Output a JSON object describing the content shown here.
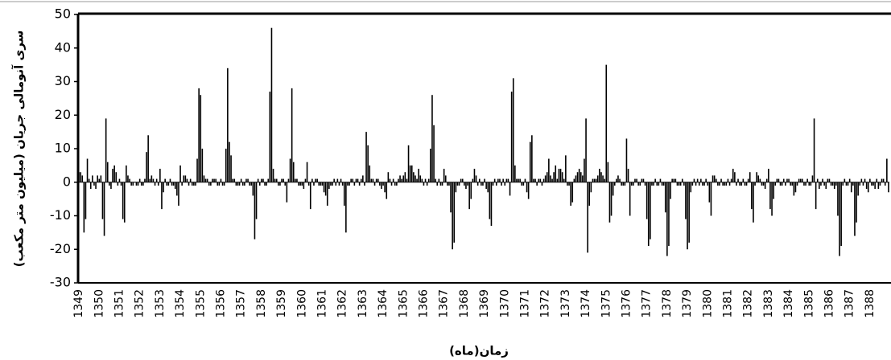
{
  "chart_data": {
    "type": "bar",
    "y_label": "سری آنومالی جریان (میلیون متر مکعب)",
    "x_label": "زمان(ماه)",
    "color": "#000000",
    "ylim": [
      -30,
      50
    ],
    "yticks": [
      -30,
      -20,
      -10,
      0,
      10,
      20,
      30,
      40,
      50
    ],
    "grid": false,
    "categories": [
      "1349",
      null,
      null,
      null,
      null,
      null,
      null,
      null,
      null,
      null,
      null,
      null,
      "1350",
      null,
      null,
      null,
      null,
      null,
      null,
      null,
      null,
      null,
      null,
      null,
      "1351",
      null,
      null,
      null,
      null,
      null,
      null,
      null,
      null,
      null,
      null,
      null,
      "1352",
      null,
      null,
      null,
      null,
      null,
      null,
      null,
      null,
      null,
      null,
      null,
      "1353",
      null,
      null,
      null,
      null,
      null,
      null,
      null,
      null,
      null,
      null,
      null,
      "1354",
      null,
      null,
      null,
      null,
      null,
      null,
      null,
      null,
      null,
      null,
      null,
      "1355",
      null,
      null,
      null,
      null,
      null,
      null,
      null,
      null,
      null,
      null,
      null,
      "1356",
      null,
      null,
      null,
      null,
      null,
      null,
      null,
      null,
      null,
      null,
      null,
      "1357",
      null,
      null,
      null,
      null,
      null,
      null,
      null,
      null,
      null,
      null,
      null,
      "1358",
      null,
      null,
      null,
      null,
      null,
      null,
      null,
      null,
      null,
      null,
      null,
      "1359",
      null,
      null,
      null,
      null,
      null,
      null,
      null,
      null,
      null,
      null,
      null,
      "1360",
      null,
      null,
      null,
      null,
      null,
      null,
      null,
      null,
      null,
      null,
      null,
      "1361",
      null,
      null,
      null,
      null,
      null,
      null,
      null,
      null,
      null,
      null,
      null,
      "1362",
      null,
      null,
      null,
      null,
      null,
      null,
      null,
      null,
      null,
      null,
      null,
      "1363",
      null,
      null,
      null,
      null,
      null,
      null,
      null,
      null,
      null,
      null,
      null,
      "1364",
      null,
      null,
      null,
      null,
      null,
      null,
      null,
      null,
      null,
      null,
      null,
      "1365",
      null,
      null,
      null,
      null,
      null,
      null,
      null,
      null,
      null,
      null,
      null,
      "1366",
      null,
      null,
      null,
      null,
      null,
      null,
      null,
      null,
      null,
      null,
      null,
      "1367",
      null,
      null,
      null,
      null,
      null,
      null,
      null,
      null,
      null,
      null,
      null,
      "1368",
      null,
      null,
      null,
      null,
      null,
      null,
      null,
      null,
      null,
      null,
      null,
      "1369",
      null,
      null,
      null,
      null,
      null,
      null,
      null,
      null,
      null,
      null,
      null,
      "1370",
      null,
      null,
      null,
      null,
      null,
      null,
      null,
      null,
      null,
      null,
      null,
      "1371",
      null,
      null,
      null,
      null,
      null,
      null,
      null,
      null,
      null,
      null,
      null,
      "1372",
      null,
      null,
      null,
      null,
      null,
      null,
      null,
      null,
      null,
      null,
      null,
      "1373",
      null,
      null,
      null,
      null,
      null,
      null,
      null,
      null,
      null,
      null,
      null,
      "1374",
      null,
      null,
      null,
      null,
      null,
      null,
      null,
      null,
      null,
      null,
      null,
      "1375",
      null,
      null,
      null,
      null,
      null,
      null,
      null,
      null,
      null,
      null,
      null,
      "1376",
      null,
      null,
      null,
      null,
      null,
      null,
      null,
      null,
      null,
      null,
      null,
      "1377",
      null,
      null,
      null,
      null,
      null,
      null,
      null,
      null,
      null,
      null,
      null,
      "1378",
      null,
      null,
      null,
      null,
      null,
      null,
      null,
      null,
      null,
      null,
      null,
      "1379",
      null,
      null,
      null,
      null,
      null,
      null,
      null,
      null,
      null,
      null,
      null,
      "1380",
      null,
      null,
      null,
      null,
      null,
      null,
      null,
      null,
      null,
      null,
      null,
      "1381",
      null,
      null,
      null,
      null,
      null,
      null,
      null,
      null,
      null,
      null,
      null,
      "1382",
      null,
      null,
      null,
      null,
      null,
      null,
      null,
      null,
      null,
      null,
      null,
      "1383",
      null,
      null,
      null,
      null,
      null,
      null,
      null,
      null,
      null,
      null,
      null,
      "1384",
      null,
      null,
      null,
      null,
      null,
      null,
      null,
      null,
      null,
      null,
      null,
      "1385",
      null,
      null,
      null,
      null,
      null,
      null,
      null,
      null,
      null,
      null,
      null,
      "1386",
      null,
      null,
      null,
      null,
      null,
      null,
      null,
      null,
      null,
      null,
      null,
      "1387",
      null,
      null,
      null,
      null,
      null,
      null,
      null,
      null,
      null,
      null,
      null,
      "1388",
      null,
      null,
      null,
      null,
      null,
      null,
      null,
      null,
      null,
      null,
      null
    ],
    "values": [
      3,
      3,
      2,
      -15,
      -11,
      7,
      1,
      -2,
      2,
      -1,
      -2,
      2,
      1,
      2,
      -11,
      -16,
      19,
      6,
      -1,
      -2,
      4,
      5,
      3,
      -1,
      1,
      -1,
      -11,
      -12,
      5,
      2,
      1,
      -1,
      -1,
      0,
      -1,
      -1,
      1,
      -1,
      -1,
      1,
      9,
      14,
      1,
      2,
      1,
      -1,
      1,
      -1,
      4,
      -8,
      -3,
      1,
      -1,
      -1,
      1,
      -1,
      -1,
      -2,
      -4,
      -7,
      5,
      -1,
      2,
      2,
      1,
      -1,
      1,
      -1,
      -1,
      -1,
      7,
      28,
      26,
      10,
      2,
      1,
      1,
      -1,
      -1,
      1,
      1,
      1,
      -1,
      -1,
      1,
      -1,
      -1,
      10,
      34,
      12,
      8,
      1,
      1,
      -1,
      -1,
      -1,
      1,
      -1,
      -1,
      1,
      1,
      -1,
      -1,
      -4,
      -17,
      -11,
      1,
      -1,
      1,
      1,
      -1,
      -1,
      1,
      27,
      46,
      4,
      1,
      1,
      -1,
      -1,
      1,
      1,
      -1,
      -6,
      1,
      7,
      28,
      6,
      1,
      1,
      -1,
      -1,
      -1,
      -2,
      1,
      6,
      -1,
      -8,
      1,
      -1,
      1,
      1,
      -1,
      -1,
      -1,
      -3,
      -4,
      -7,
      -2,
      -1,
      -1,
      1,
      -1,
      1,
      -1,
      1,
      -1,
      -7,
      -15,
      -1,
      -1,
      1,
      1,
      -1,
      1,
      1,
      -1,
      1,
      2,
      -1,
      15,
      11,
      5,
      1,
      1,
      -1,
      1,
      1,
      -1,
      -2,
      -1,
      -3,
      -5,
      3,
      1,
      -1,
      1,
      -1,
      -1,
      1,
      2,
      1,
      2,
      3,
      1,
      11,
      5,
      5,
      3,
      2,
      1,
      4,
      2,
      1,
      -1,
      1,
      -1,
      1,
      10,
      26,
      17,
      1,
      -1,
      1,
      -1,
      -1,
      4,
      2,
      -1,
      -1,
      -9,
      -20,
      -18,
      -3,
      -1,
      -1,
      1,
      1,
      -1,
      -2,
      -1,
      -8,
      -5,
      1,
      4,
      2,
      -1,
      1,
      -1,
      -1,
      1,
      -2,
      -3,
      -11,
      -13,
      -1,
      1,
      -1,
      1,
      1,
      -1,
      1,
      -1,
      1,
      1,
      -4,
      27,
      31,
      5,
      1,
      1,
      1,
      -1,
      -1,
      1,
      -3,
      -5,
      12,
      14,
      1,
      1,
      -1,
      1,
      1,
      -1,
      1,
      2,
      3,
      7,
      2,
      1,
      3,
      5,
      1,
      4,
      4,
      3,
      1,
      8,
      -1,
      -1,
      -7,
      -6,
      1,
      2,
      3,
      4,
      3,
      2,
      7,
      19,
      -21,
      -7,
      -3,
      1,
      1,
      1,
      2,
      4,
      3,
      2,
      1,
      35,
      6,
      -12,
      -10,
      -4,
      -1,
      1,
      2,
      1,
      -1,
      -1,
      -1,
      13,
      4,
      -10,
      -1,
      -1,
      1,
      1,
      -1,
      -1,
      1,
      1,
      -1,
      -11,
      -19,
      -17,
      -1,
      -1,
      1,
      -1,
      -1,
      1,
      -1,
      -1,
      -9,
      -22,
      -19,
      -5,
      1,
      1,
      1,
      -1,
      -1,
      -1,
      1,
      -1,
      -11,
      -20,
      -18,
      -3,
      -1,
      1,
      -1,
      1,
      -1,
      1,
      -1,
      -1,
      1,
      -1,
      -6,
      -10,
      2,
      2,
      1,
      -1,
      -1,
      1,
      -1,
      -1,
      -1,
      1,
      -1,
      1,
      4,
      3,
      -1,
      1,
      -1,
      -1,
      1,
      -1,
      -1,
      1,
      3,
      -8,
      -12,
      -1,
      3,
      2,
      1,
      -1,
      -1,
      -2,
      1,
      4,
      -8,
      -10,
      -5,
      -1,
      1,
      1,
      -1,
      -1,
      1,
      -1,
      1,
      1,
      -1,
      -1,
      -4,
      -3,
      -1,
      1,
      1,
      1,
      -1,
      -1,
      1,
      -1,
      -1,
      2,
      19,
      -8,
      1,
      -2,
      -1,
      1,
      -1,
      -2,
      1,
      1,
      -1,
      -1,
      -2,
      -1,
      -10,
      -22,
      -19,
      -1,
      1,
      -1,
      -1,
      1,
      -3,
      -1,
      -16,
      -12,
      -4,
      -1,
      1,
      -1,
      1,
      -2,
      -3,
      1,
      -1,
      -1,
      -2,
      1,
      -2,
      -1,
      1,
      1,
      -1,
      7,
      -3
    ]
  }
}
